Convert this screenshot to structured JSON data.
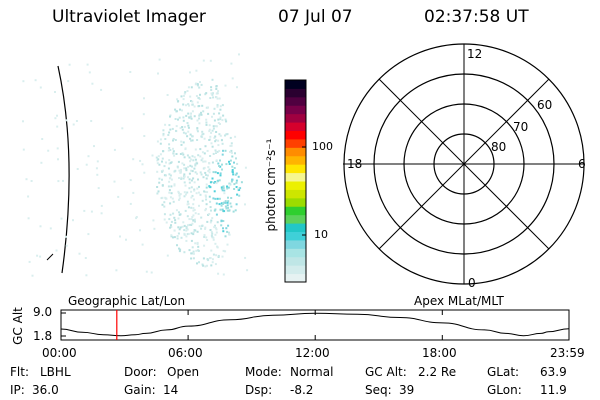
{
  "header": {
    "instrument": "Ultraviolet Imager",
    "date": "07 Jul 07",
    "time": "02:37:58 UT"
  },
  "colorbar": {
    "label": "photon cm⁻²s⁻¹",
    "ticks": [
      {
        "label": "100",
        "value": 100
      },
      {
        "label": "10",
        "value": 10
      }
    ],
    "colors": [
      "#e6f2f2",
      "#d3ecec",
      "#bfe6e6",
      "#a8e4e4",
      "#7fd7e0",
      "#3fd0d8",
      "#22c7c7",
      "#5cd15c",
      "#2fcf2f",
      "#9bdc00",
      "#cde600",
      "#ecf000",
      "#f6f690",
      "#ffe600",
      "#ffb400",
      "#ff8c00",
      "#ff4000",
      "#ff0000",
      "#d6002c",
      "#a00040",
      "#780048",
      "#500040",
      "#2a0030",
      "#000020"
    ]
  },
  "polar_plot": {
    "mlt_labels": {
      "top": "12",
      "bottom": "0",
      "left": "18",
      "right": "6"
    },
    "lat_labels": [
      "60",
      "70",
      "80"
    ]
  },
  "timeline": {
    "left_label": "Geographic Lat/Lon",
    "right_label": "Apex MLat/MLT",
    "y_axis_title": "GC Alt",
    "y_ticks": [
      "9.0",
      "1.8"
    ],
    "x_ticks": [
      "00:00",
      "06:00",
      "12:00",
      "18:00",
      "23:59"
    ],
    "current_marker_time": "02:37:58"
  },
  "chart_data": {
    "type": "line",
    "title": "",
    "xlabel": "",
    "ylabel": "GC Alt",
    "x_range": [
      "00:00",
      "23:59"
    ],
    "ylim": [
      1.8,
      9.0
    ],
    "series": [
      {
        "x": [
          "00:00",
          "01:00",
          "02:00",
          "02:50",
          "03:30",
          "04:00",
          "05:00",
          "06:00",
          "08:00",
          "10:00",
          "12:00",
          "14:00",
          "16:00",
          "18:00",
          "20:00",
          "21:00",
          "21:50",
          "22:40",
          "23:00",
          "23:59"
        ],
        "values": [
          4.0,
          3.0,
          2.2,
          1.9,
          2.2,
          2.6,
          3.7,
          4.9,
          6.9,
          8.3,
          8.9,
          8.6,
          7.6,
          5.9,
          3.7,
          2.6,
          1.9,
          2.6,
          3.1,
          4.1
        ]
      }
    ],
    "marker_x": "02:37:58"
  },
  "status": {
    "row1": [
      {
        "label": "Flt:",
        "value": "LBHL"
      },
      {
        "label": "Door:",
        "value": "Open"
      },
      {
        "label": "Mode:",
        "value": "Normal"
      },
      {
        "label": "GC Alt:",
        "value": "2.2 Re"
      },
      {
        "label": "GLat:",
        "value": "63.9"
      }
    ],
    "row2": [
      {
        "label": "IP:",
        "value": "36.0"
      },
      {
        "label": "Gain:",
        "value": "14"
      },
      {
        "label": "Dsp:",
        "value": "-8.2"
      },
      {
        "label": "Seq:",
        "value": "39"
      },
      {
        "label": "GLon:",
        "value": "11.9"
      }
    ]
  }
}
